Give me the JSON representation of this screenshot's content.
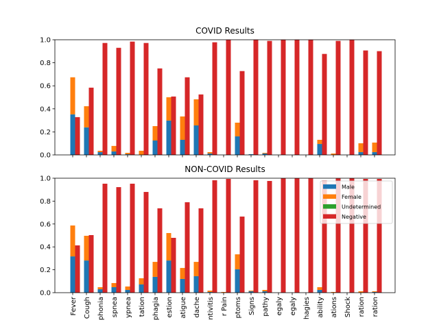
{
  "colors": {
    "male": "#1f77b4",
    "female": "#ff7f0e",
    "undetermined": "#2ca02c",
    "negative": "#d62728"
  },
  "chart_data": [
    {
      "type": "bar",
      "title": "COVID Results",
      "ylim": [
        0,
        1.0
      ],
      "yticks": [
        "0.0",
        "0.2",
        "0.4",
        "0.6",
        "0.8",
        "1.0"
      ],
      "categories": [
        "Fever",
        "Cough",
        "phonia",
        "spnea",
        "ypnea",
        "tation",
        "phagia",
        "estion",
        "atigue",
        "dache",
        "ntivitis",
        "r Pain",
        "ptoms",
        "Signs",
        "pathy",
        "egaly",
        "egaly",
        "hagies",
        "ability",
        "ations",
        "Shock",
        "ration",
        "ration"
      ],
      "series": [
        {
          "name": "Male",
          "stack": "positive",
          "values": [
            0.352,
            0.239,
            0.024,
            0.03,
            0.006,
            0,
            0.125,
            0.298,
            0.131,
            0.256,
            0.012,
            0,
            0.161,
            0.006,
            0.012,
            0,
            0,
            0,
            0.095,
            0,
            0,
            0.024,
            0.024
          ]
        },
        {
          "name": "Female",
          "stack": "positive",
          "values": [
            0.322,
            0.184,
            0.012,
            0.048,
            0.012,
            0.036,
            0.125,
            0.203,
            0.203,
            0.227,
            0.012,
            0,
            0.119,
            0,
            0.006,
            0,
            0,
            0,
            0.036,
            0.012,
            0,
            0.077,
            0.083
          ]
        },
        {
          "name": "Undetermined",
          "stack": "positive",
          "values": [
            0,
            0,
            0,
            0,
            0,
            0,
            0,
            0,
            0,
            0,
            0,
            0,
            0,
            0,
            0,
            0,
            0,
            0,
            0,
            0,
            0,
            0,
            0
          ]
        },
        {
          "name": "Negative",
          "stack": "negative",
          "values": [
            0.328,
            0.584,
            0.972,
            0.93,
            0.984,
            0.972,
            0.751,
            0.507,
            0.674,
            0.525,
            0.978,
            1.0,
            0.728,
            1.0,
            0.99,
            1.0,
            1.0,
            1.0,
            0.877,
            0.99,
            1.0,
            0.907,
            0.901
          ]
        }
      ]
    },
    {
      "type": "bar",
      "title": "NON-COVID Results",
      "ylim": [
        0,
        1.0
      ],
      "yticks": [
        "0.0",
        "0.2",
        "0.4",
        "0.6",
        "0.8",
        "1.0"
      ],
      "legend": {
        "position": "upper-right",
        "entries": [
          "Male",
          "Female",
          "Undetermined",
          "Negative"
        ]
      },
      "categories": [
        "Fever",
        "Cough",
        "phonia",
        "spnea",
        "ypnea",
        "tation",
        "phagia",
        "estion",
        "atigue",
        "dache",
        "ntivitis",
        "r Pain",
        "ptoms",
        "Signs",
        "pathy",
        "egaly",
        "egaly",
        "hagies",
        "ability",
        "ations",
        "Shock",
        "ration",
        "ration"
      ],
      "series": [
        {
          "name": "Male",
          "stack": "positive",
          "values": [
            0.317,
            0.281,
            0.03,
            0.048,
            0.024,
            0.072,
            0.138,
            0.281,
            0.12,
            0.144,
            0.006,
            0,
            0.204,
            0.012,
            0.012,
            0,
            0,
            0,
            0.024,
            0,
            0,
            0,
            0.006
          ]
        },
        {
          "name": "Female",
          "stack": "positive",
          "values": [
            0.27,
            0.216,
            0.018,
            0.036,
            0.03,
            0.054,
            0.131,
            0.24,
            0.096,
            0.125,
            0.012,
            0.006,
            0.131,
            0.006,
            0.012,
            0,
            0,
            0,
            0.024,
            0.006,
            0,
            0.012,
            0.006
          ]
        },
        {
          "name": "Undetermined",
          "stack": "positive",
          "values": [
            0,
            0,
            0,
            0,
            0,
            0,
            0,
            0,
            0,
            0,
            0,
            0,
            0,
            0,
            0,
            0,
            0,
            0,
            0,
            0,
            0,
            0,
            0
          ]
        },
        {
          "name": "Negative",
          "stack": "negative",
          "values": [
            0.413,
            0.503,
            0.952,
            0.922,
            0.952,
            0.88,
            0.737,
            0.479,
            0.79,
            0.737,
            0.982,
            0.994,
            0.665,
            0.982,
            0.976,
            1.0,
            1.0,
            1.0,
            0.98,
            0.998,
            1.0,
            0.994,
            0.994
          ]
        }
      ]
    }
  ]
}
